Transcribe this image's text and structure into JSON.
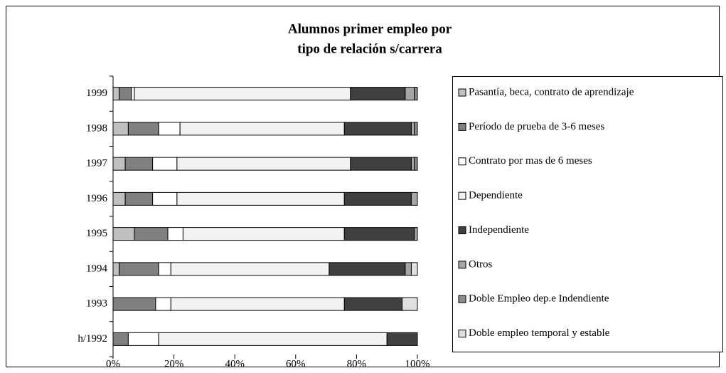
{
  "chart_data": {
    "type": "stacked_barh",
    "title": [
      "Alumnos primer empleo por",
      "tipo de relación s/carrera"
    ],
    "categories": [
      "1999",
      "1998",
      "1997",
      "1996",
      "1995",
      "1994",
      "1993",
      "h/1992"
    ],
    "series": [
      {
        "name": "Pasantía, beca, contrato de aprendizaje",
        "color": "#c0c0c0",
        "values": [
          2,
          5,
          4,
          4,
          7,
          2,
          0,
          0
        ]
      },
      {
        "name": "Período de prueba de 3-6 meses",
        "color": "#808080",
        "values": [
          4,
          10,
          9,
          9,
          11,
          13,
          14,
          5
        ]
      },
      {
        "name": "Contrato por mas de 6 meses",
        "color": "#ffffff",
        "values": [
          1,
          7,
          8,
          8,
          5,
          4,
          5,
          10
        ]
      },
      {
        "name": "Dependiente",
        "color": "#f2f2f2",
        "values": [
          71,
          54,
          57,
          55,
          53,
          52,
          57,
          75
        ]
      },
      {
        "name": "Independiente",
        "color": "#404040",
        "values": [
          18,
          22,
          20,
          22,
          23,
          25,
          19,
          10
        ]
      },
      {
        "name": "Otros",
        "color": "#a6a6a6",
        "values": [
          3,
          1,
          1,
          2,
          1,
          2,
          0,
          0
        ]
      },
      {
        "name": "Doble Empleo dep.e Indendiente",
        "color": "#8c8c8c",
        "values": [
          1,
          1,
          1,
          0,
          0,
          0,
          0,
          0
        ]
      },
      {
        "name": "Doble empleo temporal y estable",
        "color": "#e0e0e0",
        "values": [
          0,
          0,
          0,
          0,
          0,
          2,
          5,
          0
        ]
      }
    ],
    "xlim": [
      0,
      100
    ],
    "xticks": [
      {
        "value": 0,
        "label": "0%"
      },
      {
        "value": 20,
        "label": "20%"
      },
      {
        "value": 40,
        "label": "40%"
      },
      {
        "value": 60,
        "label": "60%"
      },
      {
        "value": 80,
        "label": "80%"
      },
      {
        "value": 100,
        "label": "100%"
      }
    ],
    "legend": "right"
  }
}
